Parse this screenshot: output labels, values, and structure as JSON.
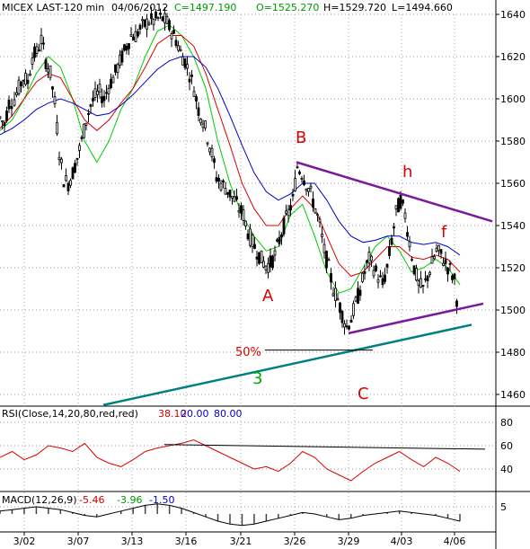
{
  "header": {
    "symbol": "MICEX LAST-120 min",
    "date": "04/06/2012",
    "close": "C=1497.190",
    "open": "O=1525.270",
    "high": "H=1529.720",
    "low": "L=1494.660"
  },
  "colors": {
    "background": "#ffffff",
    "candle": "#000000",
    "ma_fast": "#00cc00",
    "ma_mid": "#dd0000",
    "ma_slow": "#0000cc",
    "triangle": "#7a1a9a",
    "support": "#008080",
    "annotation_red": "#dd0000",
    "annotation_green": "#00aa00",
    "rsi_line": "#dd0000",
    "rsi_params_red": "#cc0000",
    "rsi_params_blue": "#0000cc",
    "macd_red": "#cc0000",
    "macd_green": "#009900",
    "macd_blue": "#0000cc"
  },
  "annotations": {
    "B": "B",
    "A": "A",
    "C": "C",
    "h": "h",
    "f": "f",
    "three": "3",
    "fib": "50%"
  },
  "rsi_panel": {
    "label": "RSI(Close,14,20,80,red,red)",
    "value": "38.10",
    "lower": "20.00",
    "upper": "80.00"
  },
  "macd_panel": {
    "label": "MACD(12,26,9)",
    "v1": "-5.46",
    "v2": "-3.96",
    "v3": "-1.50"
  },
  "chart_data": {
    "type": "candlestick",
    "title": "MICEX LAST-120 min",
    "x_tick_labels": [
      "3/02",
      "3/07",
      "3/13",
      "3/16",
      "3/21",
      "3/26",
      "3/29",
      "4/03",
      "4/06"
    ],
    "y_tick_labels": [
      1460,
      1480,
      1500,
      1520,
      1540,
      1560,
      1580,
      1600,
      1620,
      1640
    ],
    "ylim": [
      1450,
      1648
    ],
    "price_path": [
      [
        0,
        1591
      ],
      [
        5,
        1588
      ],
      [
        10,
        1598
      ],
      [
        16,
        1600
      ],
      [
        21,
        1605
      ],
      [
        26,
        1610
      ],
      [
        31,
        1608
      ],
      [
        36,
        1620
      ],
      [
        41,
        1622
      ],
      [
        46,
        1628
      ],
      [
        51,
        1618
      ],
      [
        56,
        1612
      ],
      [
        61,
        1598
      ],
      [
        66,
        1575
      ],
      [
        71,
        1562
      ],
      [
        76,
        1560
      ],
      [
        81,
        1565
      ],
      [
        86,
        1572
      ],
      [
        91,
        1580
      ],
      [
        96,
        1590
      ],
      [
        101,
        1597
      ],
      [
        106,
        1601
      ],
      [
        111,
        1603
      ],
      [
        116,
        1600
      ],
      [
        121,
        1606
      ],
      [
        126,
        1610
      ],
      [
        131,
        1615
      ],
      [
        136,
        1620
      ],
      [
        141,
        1625
      ],
      [
        146,
        1630
      ],
      [
        151,
        1630
      ],
      [
        156,
        1633
      ],
      [
        161,
        1635
      ],
      [
        166,
        1637
      ],
      [
        171,
        1637
      ],
      [
        176,
        1638
      ],
      [
        181,
        1638
      ],
      [
        186,
        1636
      ],
      [
        191,
        1632
      ],
      [
        196,
        1628
      ],
      [
        201,
        1622
      ],
      [
        206,
        1618
      ],
      [
        211,
        1612
      ],
      [
        216,
        1605
      ],
      [
        221,
        1595
      ],
      [
        226,
        1590
      ],
      [
        231,
        1582
      ],
      [
        236,
        1574
      ],
      [
        241,
        1563
      ],
      [
        246,
        1560
      ],
      [
        251,
        1558
      ],
      [
        256,
        1555
      ],
      [
        261,
        1552
      ],
      [
        266,
        1548
      ],
      [
        271,
        1545
      ],
      [
        276,
        1537
      ],
      [
        281,
        1532
      ],
      [
        286,
        1528
      ],
      [
        291,
        1524
      ],
      [
        296,
        1521
      ],
      [
        301,
        1522
      ],
      [
        306,
        1526
      ],
      [
        311,
        1533
      ],
      [
        316,
        1540
      ],
      [
        321,
        1546
      ],
      [
        326,
        1552
      ],
      [
        331,
        1568
      ],
      [
        336,
        1565
      ],
      [
        341,
        1560
      ],
      [
        346,
        1555
      ],
      [
        351,
        1548
      ],
      [
        356,
        1540
      ],
      [
        361,
        1528
      ],
      [
        366,
        1520
      ],
      [
        371,
        1510
      ],
      [
        376,
        1505
      ],
      [
        381,
        1498
      ],
      [
        386,
        1492
      ],
      [
        391,
        1496
      ],
      [
        396,
        1503
      ],
      [
        401,
        1510
      ],
      [
        406,
        1518
      ],
      [
        411,
        1524
      ],
      [
        416,
        1520
      ],
      [
        421,
        1516
      ],
      [
        426,
        1512
      ],
      [
        431,
        1520
      ],
      [
        436,
        1533
      ],
      [
        441,
        1546
      ],
      [
        446,
        1552
      ],
      [
        451,
        1545
      ],
      [
        456,
        1532
      ],
      [
        461,
        1520
      ],
      [
        466,
        1512
      ],
      [
        471,
        1510
      ],
      [
        476,
        1516
      ],
      [
        481,
        1522
      ],
      [
        486,
        1528
      ],
      [
        491,
        1526
      ],
      [
        496,
        1522
      ],
      [
        501,
        1519
      ],
      [
        506,
        1514
      ],
      [
        511,
        1497
      ]
    ],
    "moving_averages": [
      {
        "name": "fast",
        "values": [
          1585,
          1590,
          1600,
          1612,
          1620,
          1615,
          1600,
          1580,
          1570,
          1580,
          1595,
          1605,
          1620,
          1632,
          1635,
          1630,
          1620,
          1605,
          1580,
          1560,
          1545,
          1535,
          1528,
          1530,
          1545,
          1550,
          1535,
          1518,
          1508,
          1510,
          1520,
          1530,
          1535,
          1528,
          1518,
          1520,
          1524,
          1520,
          1512
        ]
      },
      {
        "name": "mid",
        "values": [
          1586,
          1592,
          1600,
          1608,
          1612,
          1610,
          1600,
          1590,
          1585,
          1590,
          1598,
          1605,
          1615,
          1626,
          1630,
          1630,
          1625,
          1612,
          1595,
          1578,
          1560,
          1548,
          1540,
          1540,
          1548,
          1554,
          1548,
          1535,
          1522,
          1516,
          1518,
          1524,
          1530,
          1530,
          1525,
          1524,
          1526,
          1524,
          1518
        ]
      },
      {
        "name": "slow",
        "values": [
          1583,
          1586,
          1590,
          1595,
          1598,
          1600,
          1598,
          1595,
          1592,
          1593,
          1597,
          1602,
          1608,
          1614,
          1618,
          1620,
          1620,
          1615,
          1605,
          1592,
          1578,
          1565,
          1556,
          1552,
          1555,
          1560,
          1560,
          1552,
          1542,
          1535,
          1532,
          1533,
          1535,
          1535,
          1532,
          1531,
          1532,
          1530,
          1526
        ]
      }
    ],
    "trendlines": [
      {
        "name": "upper",
        "from": [
          330,
          1570
        ],
        "to": [
          548,
          1542
        ]
      },
      {
        "name": "lower",
        "from": [
          388,
          1489
        ],
        "to": [
          538,
          1503
        ]
      },
      {
        "name": "support",
        "from": [
          115,
          1455
        ],
        "to": [
          525,
          1493
        ]
      },
      {
        "name": "fib50",
        "from": [
          295,
          1481
        ],
        "to": [
          415,
          1481
        ]
      }
    ],
    "rsi": {
      "y_tick_labels": [
        40,
        60,
        80
      ],
      "ylim": [
        20,
        90
      ],
      "values": [
        50,
        55,
        48,
        52,
        60,
        58,
        55,
        62,
        50,
        45,
        42,
        48,
        55,
        58,
        60,
        62,
        65,
        60,
        55,
        50,
        45,
        40,
        42,
        38,
        45,
        55,
        50,
        40,
        35,
        30,
        38,
        45,
        50,
        55,
        48,
        42,
        50,
        45,
        38
      ],
      "trendline": {
        "from": [
          183,
          61
        ],
        "to": [
          540,
          57
        ]
      }
    },
    "macd": {
      "y_tick_labels": [
        5
      ],
      "values": [
        2,
        3,
        4,
        5,
        4,
        3,
        1,
        -1,
        -2,
        0,
        2,
        4,
        6,
        7,
        6,
        4,
        1,
        -2,
        -5,
        -7,
        -8,
        -7,
        -5,
        -3,
        -1,
        1,
        0,
        -2,
        -4,
        -3,
        -1,
        0,
        1,
        2,
        1,
        0,
        -1,
        -3,
        -5
      ]
    }
  }
}
